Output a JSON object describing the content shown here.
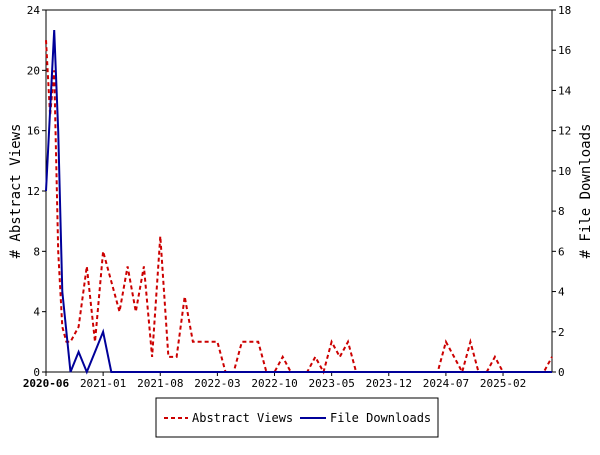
{
  "chart_data": {
    "type": "line",
    "ylabel_left": "# Abstract Views",
    "ylabel_right": "# File Downloads",
    "ylim_left": [
      0,
      24
    ],
    "ylim_right": [
      0,
      18
    ],
    "yticks_left": [
      0,
      4,
      8,
      12,
      16,
      20,
      24
    ],
    "yticks_right": [
      0,
      2,
      4,
      6,
      8,
      10,
      12,
      14,
      16,
      18
    ],
    "xlim": [
      0,
      62
    ],
    "xticks": [
      {
        "label": "2020-06",
        "x": 0
      },
      {
        "label": "2021-01",
        "x": 7
      },
      {
        "label": "2021-08",
        "x": 14
      },
      {
        "label": "2022-03",
        "x": 21
      },
      {
        "label": "2022-10",
        "x": 28
      },
      {
        "label": "2023-05",
        "x": 35
      },
      {
        "label": "2023-12",
        "x": 42
      },
      {
        "label": "2024-07",
        "x": 49
      },
      {
        "label": "2025-02",
        "x": 56
      }
    ],
    "grid": false,
    "legend_position": "bottom-center",
    "series": [
      {
        "name": "Abstract Views",
        "axis": "left",
        "color": "#cc0000",
        "style": "dashed",
        "points": [
          [
            0,
            22
          ],
          [
            0.5,
            17
          ],
          [
            1,
            20
          ],
          [
            1.5,
            8
          ],
          [
            2,
            3
          ],
          [
            2.5,
            2
          ],
          [
            3,
            2
          ],
          [
            4,
            3
          ],
          [
            5,
            7
          ],
          [
            6,
            2
          ],
          [
            7,
            8
          ],
          [
            8,
            6
          ],
          [
            9,
            4
          ],
          [
            10,
            7
          ],
          [
            11,
            4
          ],
          [
            12,
            7
          ],
          [
            13,
            1
          ],
          [
            14,
            9
          ],
          [
            15,
            1
          ],
          [
            16,
            1
          ],
          [
            17,
            5
          ],
          [
            18,
            2
          ],
          [
            19,
            2
          ],
          [
            20,
            2
          ],
          [
            21,
            2
          ],
          [
            22,
            0
          ],
          [
            23,
            0
          ],
          [
            24,
            2
          ],
          [
            25,
            2
          ],
          [
            26,
            2
          ],
          [
            27,
            0
          ],
          [
            28,
            0
          ],
          [
            29,
            1
          ],
          [
            30,
            0
          ],
          [
            31,
            0
          ],
          [
            32,
            0
          ],
          [
            33,
            1
          ],
          [
            34,
            0
          ],
          [
            35,
            2
          ],
          [
            36,
            1
          ],
          [
            37,
            2
          ],
          [
            38,
            0
          ],
          [
            39,
            0
          ],
          [
            40,
            0
          ],
          [
            41,
            0
          ],
          [
            42,
            0
          ],
          [
            43,
            0
          ],
          [
            44,
            0
          ],
          [
            45,
            0
          ],
          [
            46,
            0
          ],
          [
            47,
            0
          ],
          [
            48,
            0
          ],
          [
            49,
            2
          ],
          [
            50,
            1
          ],
          [
            51,
            0
          ],
          [
            52,
            2
          ],
          [
            53,
            0
          ],
          [
            54,
            0
          ],
          [
            55,
            1
          ],
          [
            56,
            0
          ],
          [
            57,
            0
          ],
          [
            58,
            0
          ],
          [
            59,
            0
          ],
          [
            60,
            0
          ],
          [
            61,
            0
          ],
          [
            62,
            1
          ]
        ]
      },
      {
        "name": "File Downloads",
        "axis": "right",
        "color": "#000099",
        "style": "solid",
        "points": [
          [
            0,
            9
          ],
          [
            0.5,
            13
          ],
          [
            1,
            17
          ],
          [
            1.5,
            12
          ],
          [
            2,
            4
          ],
          [
            3,
            0
          ],
          [
            4,
            1
          ],
          [
            5,
            0
          ],
          [
            6,
            1
          ],
          [
            7,
            2
          ],
          [
            8,
            0
          ],
          [
            9,
            0
          ],
          [
            10,
            0
          ],
          [
            11,
            0
          ],
          [
            12,
            0
          ],
          [
            13,
            0
          ],
          [
            14,
            0
          ],
          [
            15,
            0
          ],
          [
            16,
            0
          ],
          [
            17,
            0
          ],
          [
            18,
            0
          ],
          [
            19,
            0
          ],
          [
            20,
            0
          ],
          [
            21,
            0
          ],
          [
            22,
            0
          ],
          [
            23,
            0
          ],
          [
            24,
            0
          ],
          [
            25,
            0
          ],
          [
            26,
            0
          ],
          [
            27,
            0
          ],
          [
            28,
            0
          ],
          [
            29,
            0
          ],
          [
            30,
            0
          ],
          [
            31,
            0
          ],
          [
            32,
            0
          ],
          [
            33,
            0
          ],
          [
            34,
            0
          ],
          [
            35,
            0
          ],
          [
            36,
            0
          ],
          [
            37,
            0
          ],
          [
            38,
            0
          ],
          [
            39,
            0
          ],
          [
            40,
            0
          ],
          [
            41,
            0
          ],
          [
            42,
            0
          ],
          [
            43,
            0
          ],
          [
            44,
            0
          ],
          [
            45,
            0
          ],
          [
            46,
            0
          ],
          [
            47,
            0
          ],
          [
            48,
            0
          ],
          [
            49,
            0
          ],
          [
            50,
            0
          ],
          [
            51,
            0
          ],
          [
            52,
            0
          ],
          [
            53,
            0
          ],
          [
            54,
            0
          ],
          [
            55,
            0
          ],
          [
            56,
            0
          ],
          [
            57,
            0
          ],
          [
            58,
            0
          ],
          [
            59,
            0
          ],
          [
            60,
            0
          ],
          [
            61,
            0
          ],
          [
            62,
            0
          ]
        ]
      }
    ]
  }
}
